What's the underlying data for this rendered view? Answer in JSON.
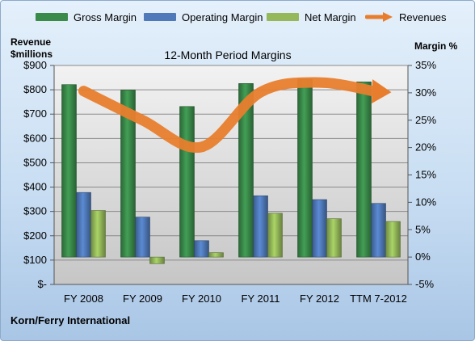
{
  "chart_data": {
    "type": "bar",
    "title": "12-Month Period Margins",
    "categories": [
      "FY 2008",
      "FY 2009",
      "FY 2010",
      "FY 2011",
      "FY 2012",
      "TTM 7-2012"
    ],
    "series": [
      {
        "name": "Gross Margin",
        "axis": "right",
        "values": [
          31.5,
          30.5,
          27.5,
          31.7,
          32.5,
          32.0
        ],
        "color": "#3a8a4a"
      },
      {
        "name": "Operating Margin",
        "axis": "right",
        "values": [
          11.8,
          7.3,
          3.0,
          11.2,
          10.5,
          9.8
        ],
        "color": "#4f79b8"
      },
      {
        "name": "Net Margin",
        "axis": "right",
        "values": [
          8.5,
          -1.2,
          0.8,
          8.0,
          7.0,
          6.5
        ],
        "color": "#94b85a"
      },
      {
        "name": "Revenues",
        "axis": "left",
        "type": "line",
        "values": [
          795,
          675,
          565,
          790,
          830,
          790
        ],
        "color": "#e87e2d"
      }
    ],
    "y_left": {
      "label": "Revenue\n$millions",
      "range": [
        0,
        900
      ],
      "tick_labels": [
        "$-",
        "$100",
        "$200",
        "$300",
        "$400",
        "$500",
        "$600",
        "$700",
        "$800",
        "$900"
      ]
    },
    "y_right": {
      "label": "Margin %",
      "range": [
        -5,
        35
      ],
      "tick_labels": [
        "-5%",
        "0%",
        "5%",
        "10%",
        "15%",
        "20%",
        "25%",
        "30%",
        "35%"
      ]
    },
    "grid": true,
    "legend": "top"
  },
  "company": "Korn/Ferry International"
}
